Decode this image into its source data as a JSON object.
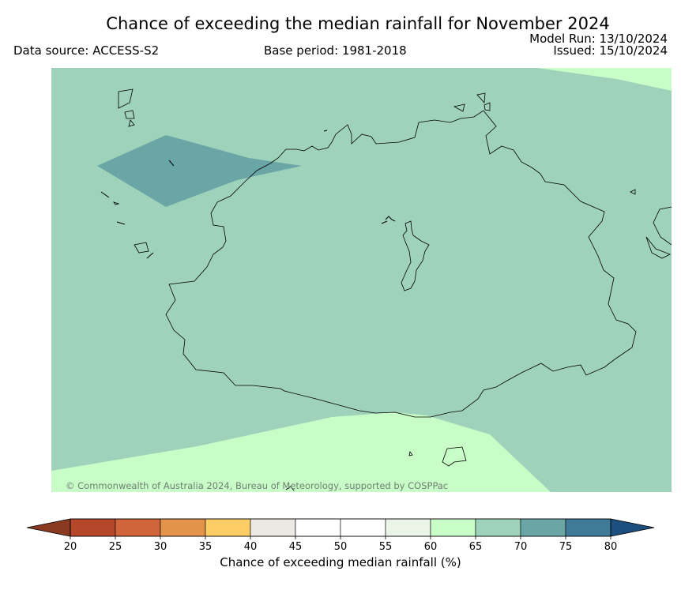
{
  "title": "Chance of exceeding the median rainfall for November 2024",
  "data_source": "Data source: ACCESS-S2",
  "base_period": "Base period: 1981-2018",
  "model_run": "Model Run: 13/10/2024",
  "issued": "Issued: 15/10/2024",
  "copyright": "© Commonwealth of Australia 2024, Bureau of Meteorology, supported by COSPPac",
  "colorbar": {
    "label": "Chance of exceeding median rainfall (%)",
    "ticks": [
      "20",
      "25",
      "30",
      "35",
      "40",
      "45",
      "50",
      "55",
      "60",
      "65",
      "70",
      "75",
      "80"
    ],
    "low_extend_color": "#8b3a22",
    "high_extend_color": "#1d4f7e",
    "colors": [
      "#b5472a",
      "#d0643a",
      "#e3944b",
      "#fdcd66",
      "#ece9e4",
      "#ffffff",
      "#ffffff",
      "#eaf5e8",
      "#c8fdc8",
      "#9ed2bb",
      "#6ba6a7",
      "#3f7a99"
    ]
  },
  "map": {
    "colors": {
      "band_65_70": "#9ed2bb",
      "band_60_65": "#c8fdc8",
      "band_70_75": "#6ba6a7",
      "coastline": "#000000"
    }
  }
}
